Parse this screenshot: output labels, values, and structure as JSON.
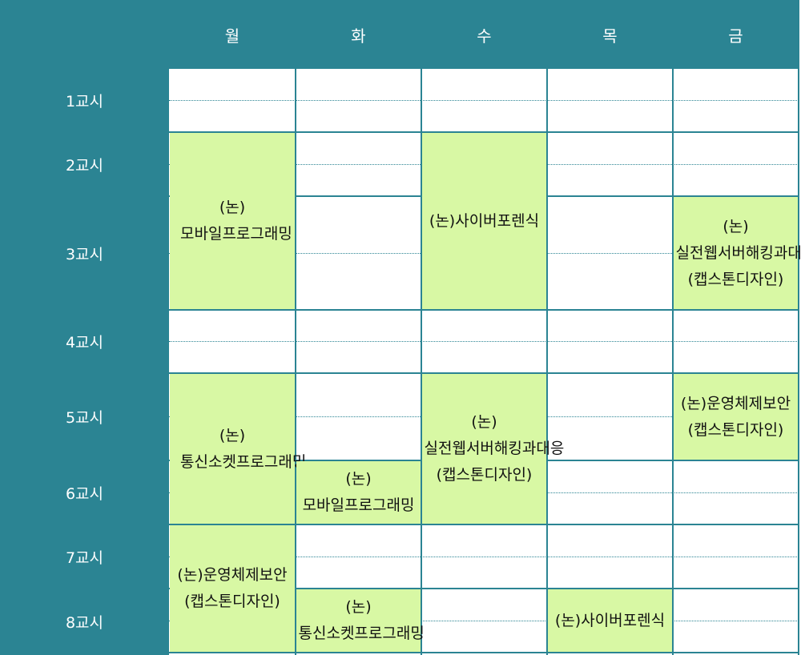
{
  "days": [
    "월",
    "화",
    "수",
    "목",
    "금"
  ],
  "periods": [
    "1교시",
    "2교시",
    "3교시",
    "4교시",
    "5교시",
    "6교시",
    "7교시",
    "8교시"
  ],
  "classes": {
    "mon_mobile": "(논)모바일프로그래밍",
    "wed_forensic": "(논)사이버포렌식",
    "fri_webhacking": "(논)실전웹서버해킹과대응(캡스톤디자인)",
    "mon_socket": "(논)통신소켓프로그래밍",
    "wed_webhacking": "(논)실전웹서버해킹과대응(캡스톤디자인)",
    "fri_os": "(논)운영체제보안(캡스톤디자인)",
    "tue_mobile": "(논)모바일프로그래밍",
    "mon_os": "(논)운영체제보안(캡스톤디자인)",
    "tue_socket": "(논)통신소켓프로그래밍",
    "thu_forensic": "(논)사이버포렌식"
  },
  "colors": {
    "header_bg": "#2b8493",
    "header_text": "#ffffff",
    "class_bg": "#d8f8a4",
    "grid_line": "#2b8493"
  }
}
